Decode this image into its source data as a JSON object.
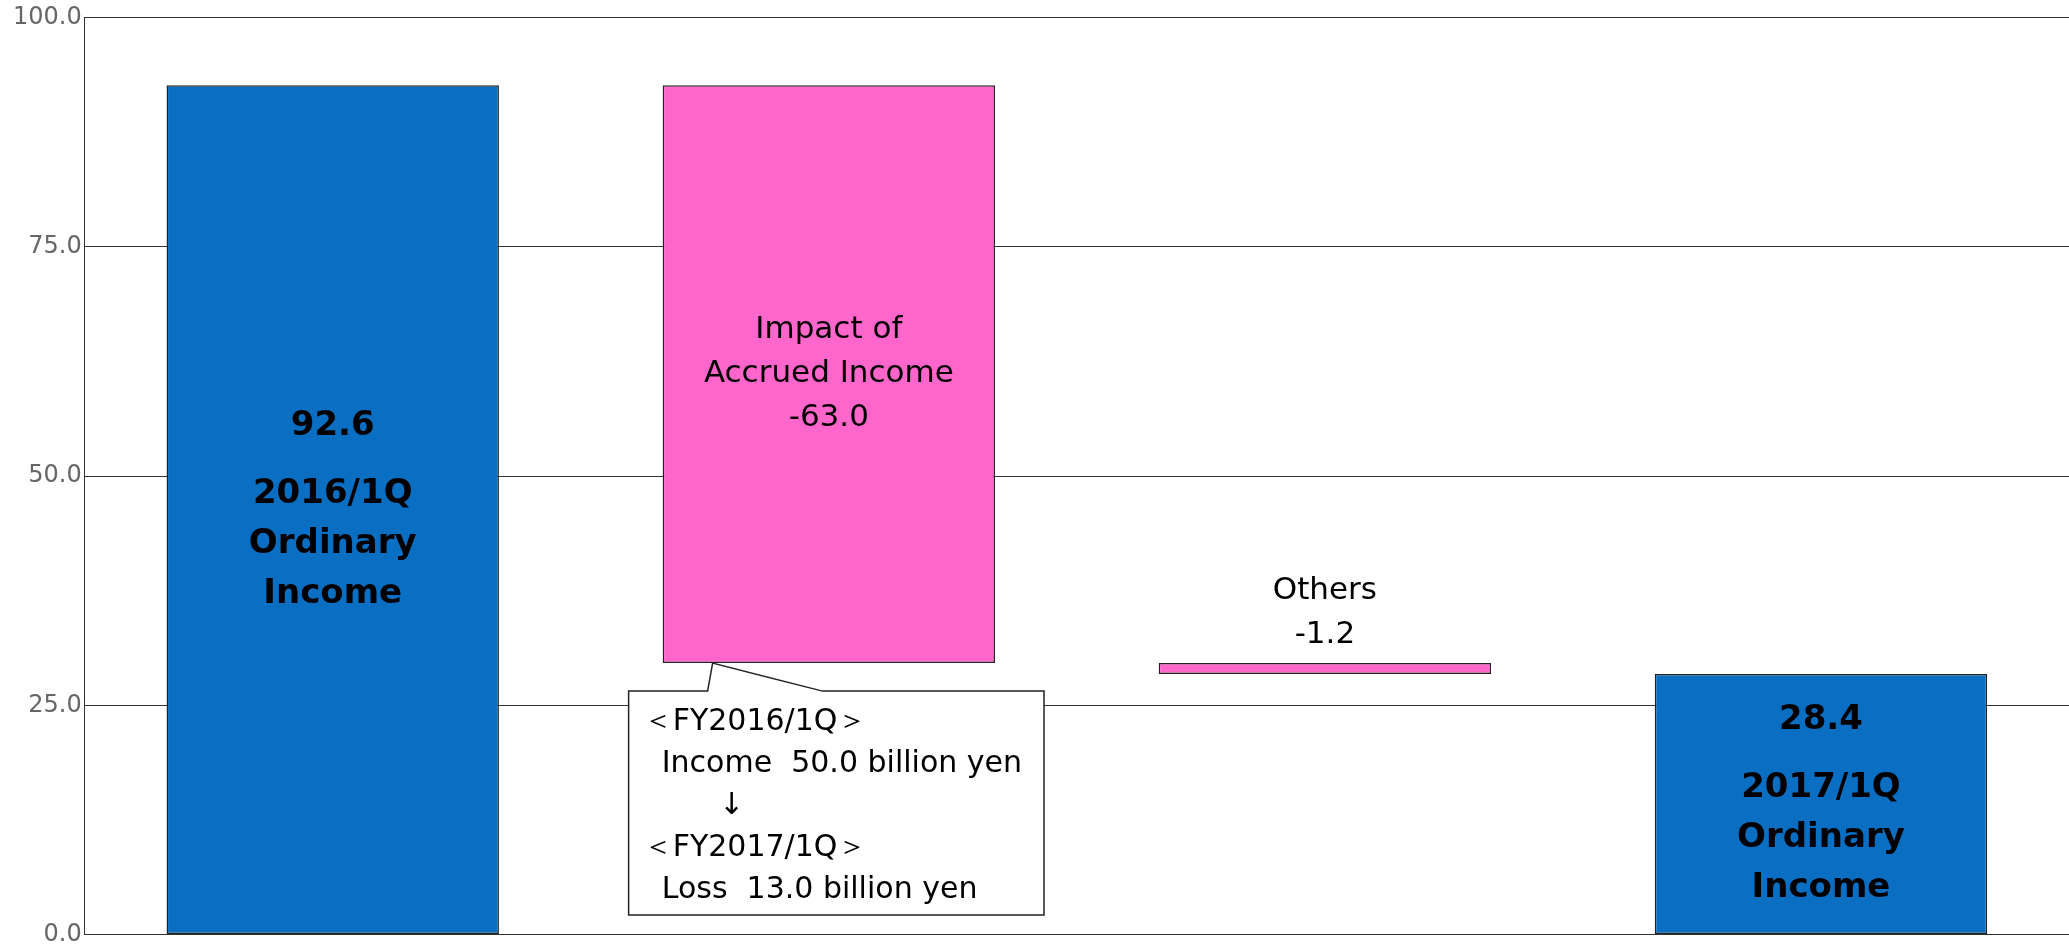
{
  "chart_data": {
    "type": "bar",
    "categories": [
      "2016/1Q\nOrdinary\nIncome",
      "Impact of\nAccrued Income",
      "Others",
      "2017/1Q\nOrdinary\nIncome"
    ],
    "values": [
      92.6,
      -63.0,
      -1.2,
      28.4
    ],
    "base": [
      0,
      92.6,
      29.6,
      0
    ],
    "colors": [
      "#0a6fc2",
      "#ff66cc",
      "#ff66cc",
      "#0a6fc2"
    ],
    "value_labels": [
      "92.6",
      "-63.0",
      "-1.2",
      "28.4"
    ],
    "ylim": [
      0,
      100
    ],
    "yticks": [
      {
        "value": 0,
        "label": "0.0"
      },
      {
        "value": 25,
        "label": "25.0"
      },
      {
        "value": 50,
        "label": "50.0"
      },
      {
        "value": 75,
        "label": "75.0"
      },
      {
        "value": 100,
        "label": "100.0"
      }
    ],
    "grid": "y",
    "tick_labels": "y",
    "legend": false,
    "annotations": [
      {
        "text": "＜FY2016/1Q＞\n  Income  50.0 billion yen\n        ↓\n＜FY2017/1Q＞\n  Loss  13.0 billion yen",
        "x": "Impact of\nAccrued Income",
        "y": 29.6
      }
    ]
  }
}
